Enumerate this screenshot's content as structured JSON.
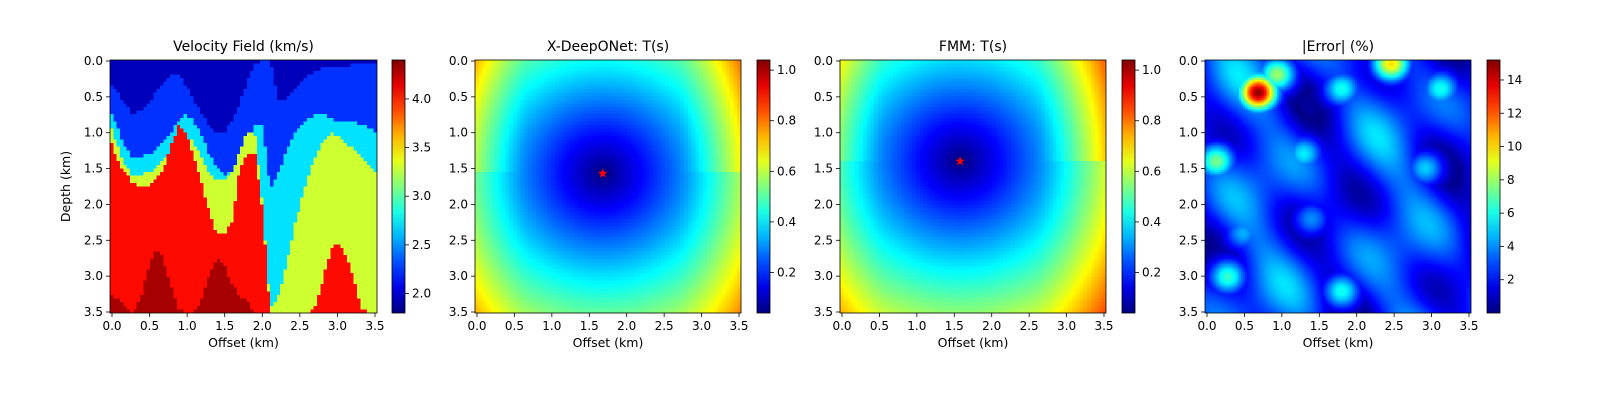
{
  "figure": {
    "background": "#ffffff"
  },
  "chart_data": [
    {
      "type": "heatmap",
      "title": "Velocity Field (km/s)",
      "xlabel": "Offset (km)",
      "ylabel": "Depth (km)",
      "xlim": [
        0,
        3.5
      ],
      "ylim": [
        3.5,
        0
      ],
      "x_ticks": [
        "0.0",
        "0.5",
        "1.0",
        "1.5",
        "2.0",
        "2.5",
        "3.0",
        "3.5"
      ],
      "y_ticks": [
        "0.0",
        "0.5",
        "1.0",
        "1.5",
        "2.0",
        "2.5",
        "3.0",
        "3.5"
      ],
      "colormap": "jet",
      "colorbar": {
        "min": 1.8,
        "max": 4.4,
        "ticks": [
          "2.0",
          "2.5",
          "3.0",
          "3.5",
          "4.0"
        ]
      },
      "layers": [
        {
          "velocity": 1.95,
          "boundary_depth": [
            0.0,
            0.0,
            0.0,
            0.0,
            0.0,
            0.0,
            0.0,
            0.0,
            0.0,
            0.0,
            0.0,
            0.0,
            0.0,
            0.0,
            0.0,
            0.0,
            0.0,
            0.0,
            0.0,
            0.0,
            0.0,
            0.0,
            0.0,
            0.0,
            0.0,
            0.0,
            0.0,
            0.0,
            0.0,
            0.0,
            0.0,
            0.0,
            0.0,
            0.0,
            0.0,
            0.0
          ]
        },
        {
          "velocity": 2.25,
          "boundary_depth": [
            0.3,
            0.45,
            0.6,
            0.75,
            0.7,
            0.6,
            0.45,
            0.3,
            0.2,
            0.2,
            0.35,
            0.55,
            0.75,
            0.9,
            1.0,
            1.0,
            0.85,
            0.6,
            0.3,
            0.05,
            0.0,
            0.0,
            0.55,
            0.55,
            0.45,
            0.3,
            0.2,
            0.15,
            0.1,
            0.1,
            0.1,
            0.1,
            0.05,
            0.05,
            0.05,
            0.05
          ]
        },
        {
          "velocity": 2.7,
          "boundary_depth": [
            0.7,
            0.95,
            1.2,
            1.35,
            1.35,
            1.3,
            1.25,
            1.15,
            1.0,
            0.85,
            0.75,
            0.85,
            1.05,
            1.3,
            1.5,
            1.6,
            1.55,
            1.35,
            1.2,
            0.9,
            0.9,
            1.8,
            1.6,
            1.3,
            1.05,
            0.9,
            0.8,
            0.75,
            0.75,
            0.8,
            0.85,
            0.85,
            0.85,
            0.9,
            0.95,
            1.0
          ]
        },
        {
          "velocity": 3.3,
          "boundary_depth": [
            0.9,
            1.2,
            1.45,
            1.6,
            1.6,
            1.55,
            1.5,
            1.4,
            1.25,
            1.1,
            1.05,
            1.15,
            1.35,
            1.55,
            1.65,
            1.65,
            1.55,
            1.25,
            1.0,
            1.0,
            2.0,
            3.4,
            3.3,
            2.9,
            2.4,
            1.95,
            1.6,
            1.3,
            1.1,
            1.0,
            1.05,
            1.15,
            1.25,
            1.35,
            1.45,
            1.55
          ]
        },
        {
          "velocity": 4.05,
          "boundary_depth": [
            1.1,
            1.4,
            1.55,
            1.7,
            1.75,
            1.75,
            1.65,
            1.5,
            1.2,
            0.9,
            1.0,
            1.35,
            1.7,
            2.1,
            2.4,
            2.4,
            2.25,
            1.5,
            1.3,
            1.3,
            2.05,
            3.5,
            3.5,
            3.5,
            3.5,
            3.5,
            3.5,
            3.4,
            3.0,
            2.6,
            2.55,
            2.7,
            3.05,
            3.45,
            3.5,
            3.5
          ]
        },
        {
          "velocity": 4.3,
          "boundary_depth": [
            3.25,
            3.3,
            3.4,
            3.5,
            3.3,
            2.9,
            2.6,
            2.75,
            3.1,
            3.45,
            3.5,
            3.5,
            3.3,
            2.95,
            2.75,
            2.85,
            3.1,
            3.25,
            3.35,
            3.5,
            3.5,
            3.5,
            3.5,
            3.5,
            3.5,
            3.5,
            3.5,
            3.5,
            3.5,
            3.5,
            3.5,
            3.5,
            3.5,
            3.5,
            3.5,
            3.5
          ]
        }
      ]
    },
    {
      "type": "heatmap",
      "title": "X-DeepONet: T(s)",
      "xlabel": "Offset (km)",
      "xlim": [
        0,
        3.5
      ],
      "ylim": [
        3.5,
        0
      ],
      "x_ticks": [
        "0.0",
        "0.5",
        "1.0",
        "1.5",
        "2.0",
        "2.5",
        "3.0",
        "3.5"
      ],
      "y_ticks": [
        "0.0",
        "0.5",
        "1.0",
        "1.5",
        "2.0",
        "2.5",
        "3.0",
        "3.5"
      ],
      "colormap": "jet",
      "colorbar": {
        "min": 0.04,
        "max": 1.04,
        "ticks": [
          "0.2",
          "0.4",
          "0.6",
          "0.8",
          "1.0"
        ]
      },
      "source": {
        "x": 1.68,
        "y": 1.57,
        "marker": "star",
        "color": "#ff0000"
      }
    },
    {
      "type": "heatmap",
      "title": "FMM: T(s)",
      "xlabel": "Offset (km)",
      "xlim": [
        0,
        3.5
      ],
      "ylim": [
        3.5,
        0
      ],
      "x_ticks": [
        "0.0",
        "0.5",
        "1.0",
        "1.5",
        "2.0",
        "2.5",
        "3.0",
        "3.5"
      ],
      "y_ticks": [
        "0.0",
        "0.5",
        "1.0",
        "1.5",
        "2.0",
        "2.5",
        "3.0",
        "3.5"
      ],
      "colormap": "jet",
      "colorbar": {
        "min": 0.04,
        "max": 1.04,
        "ticks": [
          "0.2",
          "0.4",
          "0.6",
          "0.8",
          "1.0"
        ]
      },
      "source": {
        "x": 1.58,
        "y": 1.4,
        "marker": "star",
        "color": "#ff0000"
      }
    },
    {
      "type": "heatmap",
      "title": "|Error| (%)",
      "xlabel": "Offset (km)",
      "xlim": [
        0,
        3.5
      ],
      "ylim": [
        3.5,
        0
      ],
      "x_ticks": [
        "0.0",
        "0.5",
        "1.0",
        "1.5",
        "2.0",
        "2.5",
        "3.0",
        "3.5"
      ],
      "y_ticks": [
        "0.0",
        "0.5",
        "1.0",
        "1.5",
        "2.0",
        "2.5",
        "3.0",
        "3.5"
      ],
      "colormap": "jet",
      "colorbar": {
        "min": 0,
        "max": 15.2,
        "ticks": [
          "2",
          "4",
          "6",
          "8",
          "10",
          "12",
          "14"
        ]
      },
      "hotspots": [
        {
          "x": 0.7,
          "y": 0.45,
          "value": 15.0
        },
        {
          "x": 0.95,
          "y": 0.2,
          "value": 8.0
        },
        {
          "x": 0.15,
          "y": 1.4,
          "value": 7.5
        },
        {
          "x": 0.3,
          "y": 3.0,
          "value": 6.5
        },
        {
          "x": 1.8,
          "y": 0.4,
          "value": 6.0
        },
        {
          "x": 2.45,
          "y": 0.05,
          "value": 10.0
        },
        {
          "x": 3.1,
          "y": 0.4,
          "value": 6.0
        },
        {
          "x": 1.3,
          "y": 1.3,
          "value": 5.5
        },
        {
          "x": 2.9,
          "y": 1.5,
          "value": 5.0
        },
        {
          "x": 0.5,
          "y": 2.4,
          "value": 4.5
        },
        {
          "x": 1.4,
          "y": 2.2,
          "value": 4.0
        },
        {
          "x": 1.8,
          "y": 3.2,
          "value": 6.0
        }
      ]
    }
  ]
}
